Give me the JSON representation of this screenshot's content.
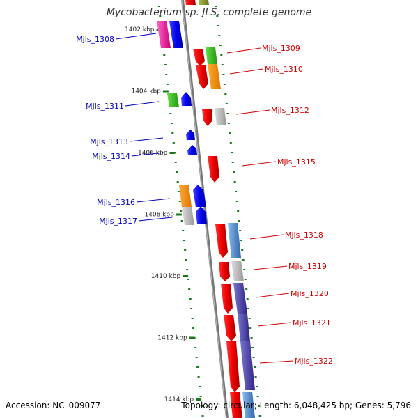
{
  "title": "Mycobacterium sp. JLS, complete genome",
  "footer": {
    "accession": "Accession: NC_009077",
    "info": "Topology: circular; Length: 6,048,425 bp; Genes: 5,796"
  },
  "colors": {
    "forward_label": "#cc0000",
    "reverse_label": "#0000bb",
    "tick": "#1a7a1a",
    "axis": "#888888"
  },
  "scale_labels": [
    "1402 kbp",
    "1404 kbp",
    "1406 kbp",
    "1408 kbp",
    "1410 kbp",
    "1412 kbp",
    "1414 kbp"
  ],
  "genes_left": [
    "Mjls_1308",
    "Mjls_1311",
    "Mjls_1313",
    "Mjls_1314",
    "Mjls_1316",
    "Mjls_1317"
  ],
  "genes_right": [
    "Mjls_1309",
    "Mjls_1310",
    "Mjls_1312",
    "Mjls_1315",
    "Mjls_1318",
    "Mjls_1319",
    "Mjls_1320",
    "Mjls_1321",
    "Mjls_1322"
  ]
}
